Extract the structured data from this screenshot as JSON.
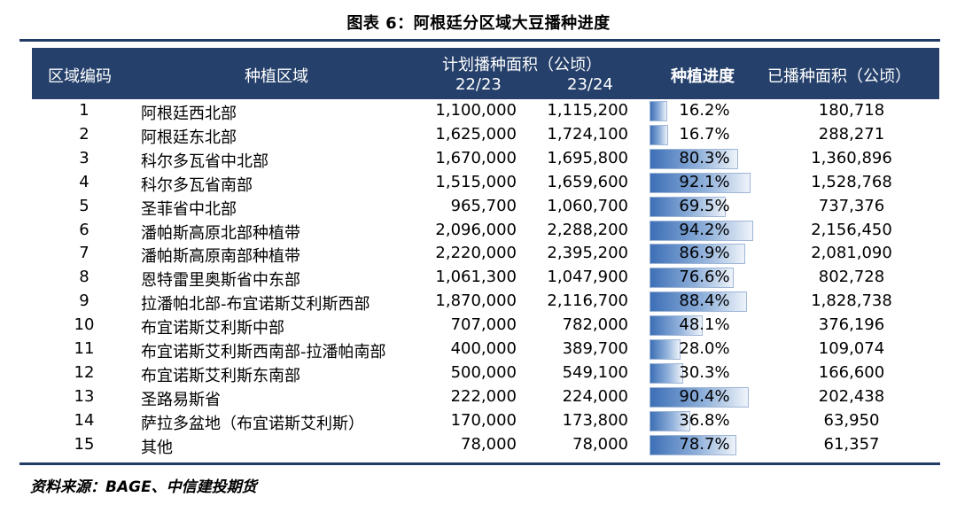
{
  "title": "图表 6：阿根廷分区域大豆播种进度",
  "header": {
    "code": "区域编码",
    "area": "种植区域",
    "plan_group": "计划播种面积（公顷）",
    "plan_22": "22/23",
    "plan_23": "23/24",
    "progress": "种植进度",
    "sown": "已播种面积（公顷）"
  },
  "rows": [
    {
      "code": "1",
      "area": "阿根廷西北部",
      "plan_22": "1,100,000",
      "plan_23": "1,115,200",
      "progress": "16.2%",
      "progress_value": 0.162,
      "sown": "180,718"
    },
    {
      "code": "2",
      "area": "阿根廷东北部",
      "plan_22": "1,625,000",
      "plan_23": "1,724,100",
      "progress": "16.7%",
      "progress_value": 0.167,
      "sown": "288,271"
    },
    {
      "code": "3",
      "area": "科尔多瓦省中北部",
      "plan_22": "1,670,000",
      "plan_23": "1,695,800",
      "progress": "80.3%",
      "progress_value": 0.803,
      "sown": "1,360,896"
    },
    {
      "code": "4",
      "area": "科尔多瓦省南部",
      "plan_22": "1,515,000",
      "plan_23": "1,659,600",
      "progress": "92.1%",
      "progress_value": 0.921,
      "sown": "1,528,768"
    },
    {
      "code": "5",
      "area": "圣菲省中北部",
      "plan_22": "965,700",
      "plan_23": "1,060,700",
      "progress": "69.5%",
      "progress_value": 0.695,
      "sown": "737,376"
    },
    {
      "code": "6",
      "area": "潘帕斯高原北部种植带",
      "plan_22": "2,096,000",
      "plan_23": "2,288,200",
      "progress": "94.2%",
      "progress_value": 0.942,
      "sown": "2,156,450"
    },
    {
      "code": "7",
      "area": "潘帕斯高原南部种植带",
      "plan_22": "2,220,000",
      "plan_23": "2,395,200",
      "progress": "86.9%",
      "progress_value": 0.869,
      "sown": "2,081,090"
    },
    {
      "code": "8",
      "area": "恩特雷里奥斯省中东部",
      "plan_22": "1,061,300",
      "plan_23": "1,047,900",
      "progress": "76.6%",
      "progress_value": 0.766,
      "sown": "802,728"
    },
    {
      "code": "9",
      "area": "拉潘帕北部-布宜诺斯艾利斯西部",
      "plan_22": "1,870,000",
      "plan_23": "2,116,700",
      "progress": "88.4%",
      "progress_value": 0.884,
      "sown": "1,828,738"
    },
    {
      "code": "10",
      "area": "布宜诺斯艾利斯中部",
      "plan_22": "707,000",
      "plan_23": "782,000",
      "progress": "48.1%",
      "progress_value": 0.481,
      "sown": "376,196"
    },
    {
      "code": "11",
      "area": "布宜诺斯艾利斯西南部-拉潘帕南部",
      "plan_22": "400,000",
      "plan_23": "389,700",
      "progress": "28.0%",
      "progress_value": 0.28,
      "sown": "109,074"
    },
    {
      "code": "12",
      "area": "布宜诺斯艾利斯东南部",
      "plan_22": "500,000",
      "plan_23": "549,100",
      "progress": "30.3%",
      "progress_value": 0.303,
      "sown": "166,600"
    },
    {
      "code": "13",
      "area": "圣路易斯省",
      "plan_22": "222,000",
      "plan_23": "224,000",
      "progress": "90.4%",
      "progress_value": 0.904,
      "sown": "202,438"
    },
    {
      "code": "14",
      "area": "萨拉多盆地（布宜诺斯艾利斯）",
      "plan_22": "170,000",
      "plan_23": "173,800",
      "progress": "36.8%",
      "progress_value": 0.368,
      "sown": "63,950"
    },
    {
      "code": "15",
      "area": "其他",
      "plan_22": "78,000",
      "plan_23": "78,000",
      "progress": "78.7%",
      "progress_value": 0.787,
      "sown": "61,357"
    }
  ],
  "source": "资料来源：BAGE、中信建投期货",
  "colors": {
    "header_bg": "#25406b",
    "rule": "#1f3b66",
    "bar_start": "#3d6fb6",
    "bar_end": "#eef3fa"
  }
}
